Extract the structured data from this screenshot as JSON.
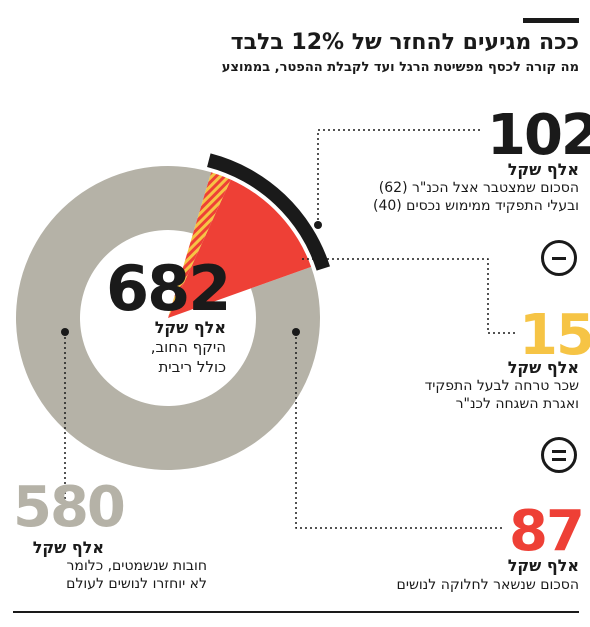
{
  "title": "ככה מגיעים להחזר של 12% בלבד",
  "subtitle": "מה קורה לכסף מפשיטת הרגל ועד לקבלת ההפטר, בממוצע",
  "chart_data": {
    "type": "pie",
    "total": {
      "value": "682",
      "unit": "אלף שקל",
      "description_lines": [
        "היקף החוב,",
        "כולל ריבית"
      ]
    },
    "slices": [
      {
        "value": 580,
        "color": "#b5b2a7"
      },
      {
        "value": 87,
        "color": "#ee4036"
      },
      {
        "value": 15,
        "color": "#f6c445"
      }
    ],
    "outer_arc_value": 102,
    "outer_arc_color": "#1a1a1a"
  },
  "annotations": [
    {
      "value": "102",
      "unit": "אלף שקל",
      "lines": [
        "הסכום שמצטבר אצל הכנ\"ר (62)",
        "ובעלי התפקיד ממימוש נכסים (40)"
      ],
      "color": "#1a1a1a"
    },
    {
      "value": "15",
      "unit": "אלף שקל",
      "lines": [
        "שכר טרחה לבעל התפקיד",
        "ואגרת השגחה לכנ\"ר"
      ],
      "color": "#f6c445"
    },
    {
      "value": "87",
      "unit": "אלף שקל",
      "lines": [
        "הסכום שנשאר לחלוקה לנושים"
      ],
      "color": "#ee4036"
    },
    {
      "value": "580",
      "unit": "אלף שקל",
      "lines": [
        "חובות שנשמטים, כלומר",
        "לא יוחזרו לנושים לעולם"
      ],
      "color": "#b5b2a7"
    }
  ],
  "operators": {
    "minus": "minus-sign",
    "equals": "equals-sign"
  }
}
